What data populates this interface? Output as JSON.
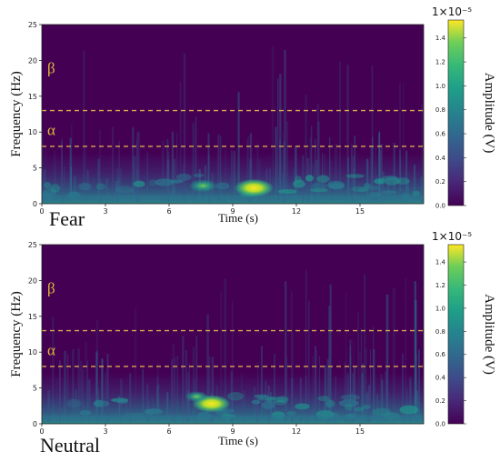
{
  "chart_data": [
    {
      "type": "heatmap",
      "condition_label": "Fear",
      "xlabel": "Time (s)",
      "ylabel": "Frequency (Hz)",
      "xticks": [
        0,
        3,
        6,
        9,
        12,
        15
      ],
      "yticks": [
        0,
        5,
        10,
        15,
        20,
        25
      ],
      "xlim": [
        0,
        18
      ],
      "ylim": [
        0,
        25
      ],
      "band_lines": [
        {
          "label": "α",
          "freq": 8
        },
        {
          "label": "β",
          "freq": 13
        }
      ],
      "band_labels": [
        "β",
        "α"
      ],
      "colorbar": {
        "label": "Amplitude (V)",
        "scale": "1×10⁻⁵",
        "ticks": [
          0.0,
          0.2,
          0.4,
          0.6,
          0.8,
          1.0,
          1.2,
          1.4
        ],
        "range": [
          0,
          1.55
        ],
        "colormap": "viridis"
      },
      "hotspots": [
        {
          "t": 10.0,
          "f": 2.2,
          "amp": 1.5
        },
        {
          "t": 7.6,
          "f": 2.5,
          "amp": 0.85
        }
      ]
    },
    {
      "type": "heatmap",
      "condition_label": "Neutral",
      "xlabel": "Time (s)",
      "ylabel": "Frequency (Hz)",
      "xticks": [
        0,
        3,
        6,
        9,
        12,
        15
      ],
      "yticks": [
        0,
        5,
        10,
        15,
        20,
        25
      ],
      "xlim": [
        0,
        18
      ],
      "ylim": [
        0,
        25
      ],
      "band_lines": [
        {
          "label": "α",
          "freq": 8
        },
        {
          "label": "β",
          "freq": 13
        }
      ],
      "band_labels": [
        "β",
        "α"
      ],
      "colorbar": {
        "label": "Amplitude (V)",
        "scale": "1×10⁻⁵",
        "ticks": [
          0.0,
          0.2,
          0.4,
          0.6,
          0.8,
          1.0,
          1.2,
          1.4
        ],
        "range": [
          0,
          1.55
        ],
        "colormap": "viridis"
      },
      "hotspots": [
        {
          "t": 8.0,
          "f": 2.8,
          "amp": 1.45
        },
        {
          "t": 7.3,
          "f": 3.8,
          "amp": 0.6
        }
      ]
    }
  ]
}
